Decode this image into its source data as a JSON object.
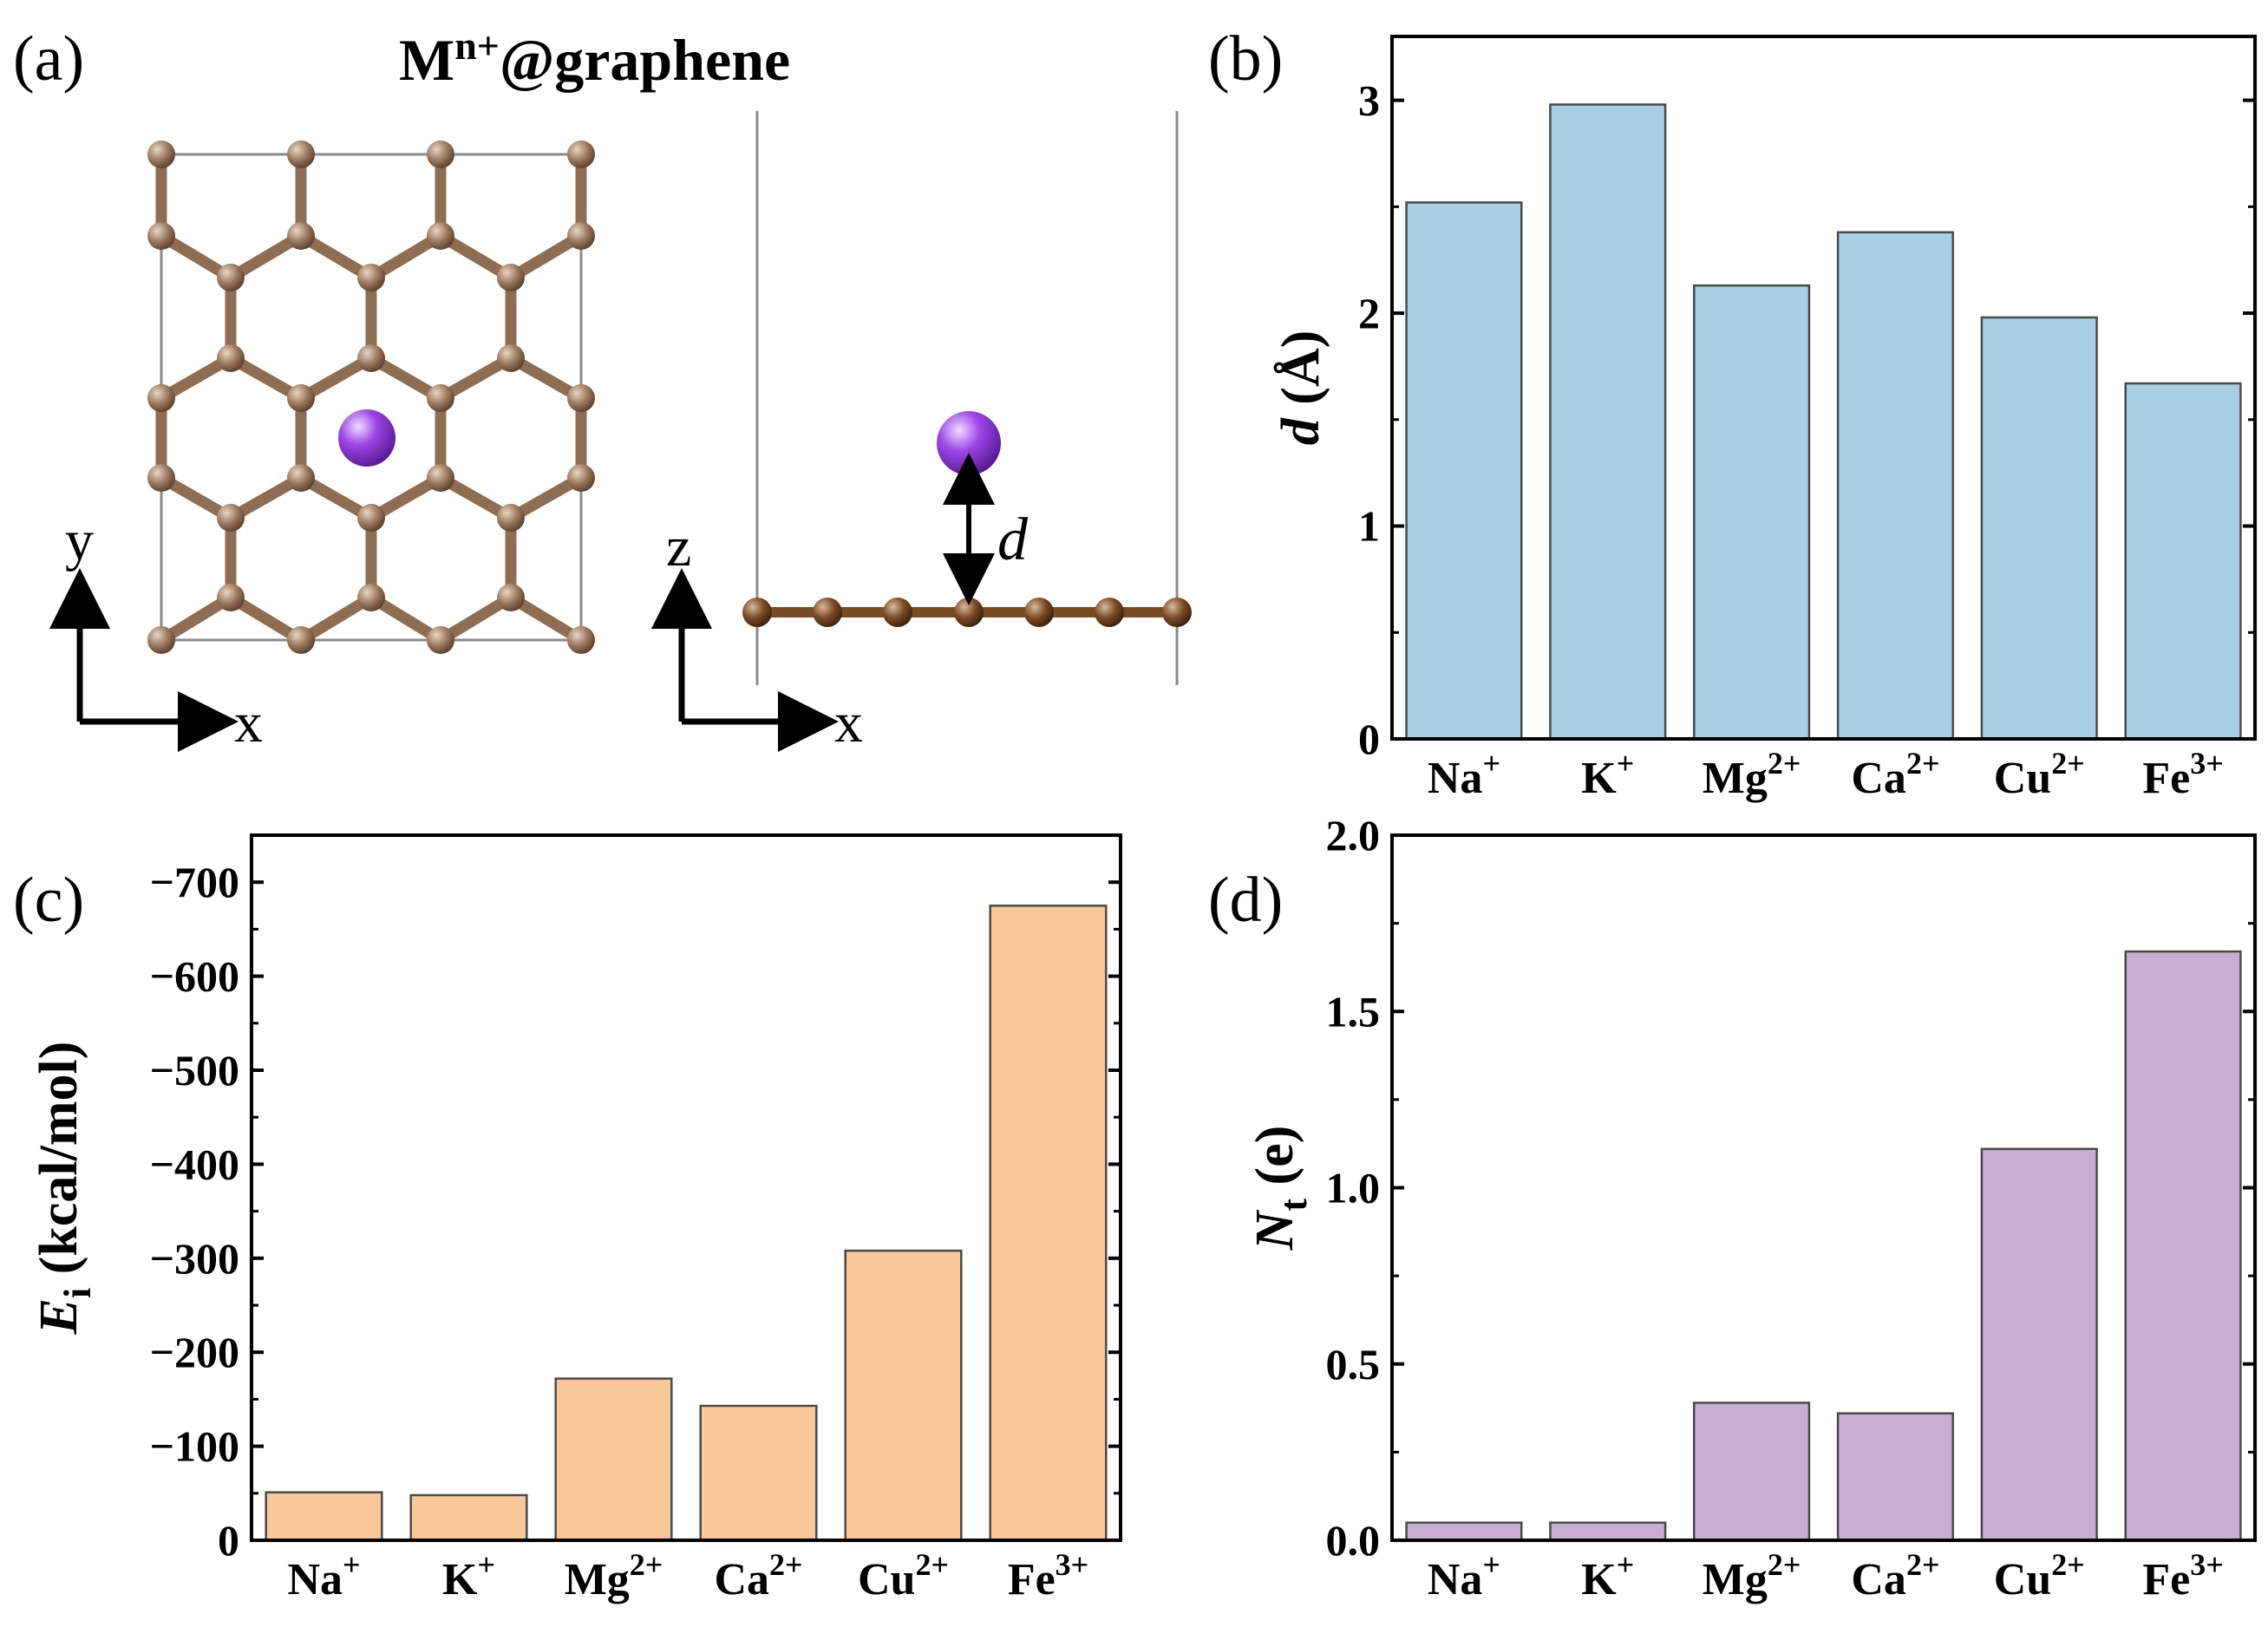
{
  "panel_a": {
    "label": "(a)",
    "title_base": "M",
    "title_sup": "n+",
    "title_rest": "@graphene",
    "top_view": {
      "axis_y": "y",
      "axis_x": "x"
    },
    "side_view": {
      "axis_z": "z",
      "axis_x": "x",
      "distance_label": "d"
    }
  },
  "colors": {
    "bar_b": "#a8cfe2",
    "bar_c": "#f8c898",
    "bar_d": "#c9aed4",
    "carbon": "#9c7b60",
    "carbon_bond": "#8f6d52",
    "ion": "#8e3ed6",
    "cell": "#8a8a8a",
    "side_bond": "#7a4a22"
  },
  "chart_data": [
    {
      "panel": "(b)",
      "type": "bar",
      "categories": [
        {
          "base": "Na",
          "sup": "+"
        },
        {
          "base": "K",
          "sup": "+"
        },
        {
          "base": "Mg",
          "sup": "2+"
        },
        {
          "base": "Ca",
          "sup": "2+"
        },
        {
          "base": "Cu",
          "sup": "2+"
        },
        {
          "base": "Fe",
          "sup": "3+"
        }
      ],
      "values": [
        2.52,
        2.98,
        2.13,
        2.38,
        1.98,
        1.67
      ],
      "ylabel_italic": "d",
      "ylabel_rest": " (Å)",
      "ylim": [
        0,
        3.3
      ],
      "yticks": [
        0,
        1,
        2,
        3
      ],
      "ytick_labels": [
        "0",
        "1",
        "2",
        "3"
      ]
    },
    {
      "panel": "(c)",
      "type": "bar",
      "categories": [
        {
          "base": "Na",
          "sup": "+"
        },
        {
          "base": "K",
          "sup": "+"
        },
        {
          "base": "Mg",
          "sup": "2+"
        },
        {
          "base": "Ca",
          "sup": "2+"
        },
        {
          "base": "Cu",
          "sup": "2+"
        },
        {
          "base": "Fe",
          "sup": "3+"
        }
      ],
      "values": [
        -51,
        -48,
        -172,
        -143,
        -308,
        -675
      ],
      "ylabel_italic": "E",
      "ylabel_sub": "i",
      "ylabel_rest": " (kcal/mol)",
      "ylim": [
        0,
        -750
      ],
      "yticks": [
        0,
        -100,
        -200,
        -300,
        -400,
        -500,
        -600,
        -700
      ],
      "ytick_labels": [
        "0",
        "−100",
        "−200",
        "−300",
        "−400",
        "−500",
        "−600",
        "−700"
      ]
    },
    {
      "panel": "(d)",
      "type": "bar",
      "categories": [
        {
          "base": "Na",
          "sup": "+"
        },
        {
          "base": "K",
          "sup": "+"
        },
        {
          "base": "Mg",
          "sup": "2+"
        },
        {
          "base": "Ca",
          "sup": "2+"
        },
        {
          "base": "Cu",
          "sup": "2+"
        },
        {
          "base": "Fe",
          "sup": "3+"
        }
      ],
      "values": [
        0.05,
        0.05,
        0.39,
        0.36,
        1.11,
        1.67
      ],
      "ylabel_italic": "N",
      "ylabel_sub": "t",
      "ylabel_rest": " (e)",
      "ylim": [
        0,
        2.0
      ],
      "yticks": [
        0,
        0.5,
        1.0,
        1.5,
        2.0
      ],
      "ytick_labels": [
        "0.0",
        "0.5",
        "1.0",
        "1.5",
        "2.0"
      ]
    }
  ]
}
